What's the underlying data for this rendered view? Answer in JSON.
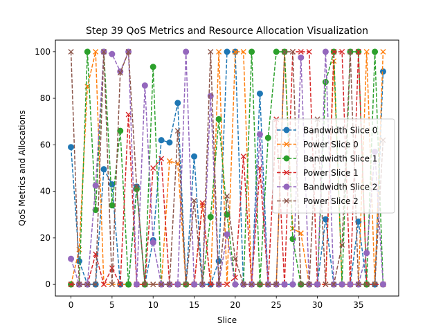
{
  "chart_data": {
    "type": "line",
    "title": "Step 39 QoS Metrics and Resource Allocation Visualization",
    "xlabel": "Slice",
    "ylabel": "QoS Metrics and Allocations",
    "xlim": [
      -1.9,
      39.9
    ],
    "ylim": [
      -5,
      105
    ],
    "xticks": [
      0,
      5,
      10,
      15,
      20,
      25,
      30,
      35
    ],
    "yticks": [
      0,
      20,
      40,
      60,
      80,
      100
    ],
    "grid": false,
    "legend_position": "center-right",
    "x": [
      0,
      1,
      2,
      3,
      4,
      5,
      6,
      7,
      8,
      9,
      10,
      11,
      12,
      13,
      14,
      15,
      16,
      17,
      18,
      19,
      20,
      21,
      22,
      23,
      24,
      25,
      26,
      27,
      28,
      29,
      30,
      31,
      32,
      33,
      34,
      35,
      36,
      37,
      38
    ],
    "series": [
      {
        "name": "Bandwidth Slice 0",
        "color": "#1f77b4",
        "marker": "circle",
        "values": [
          59,
          10,
          0,
          0,
          49.5,
          43,
          0,
          0,
          42,
          0,
          19,
          62,
          61,
          78,
          0,
          55,
          0,
          0,
          10,
          100,
          100,
          0,
          0,
          82,
          0,
          0,
          0,
          0,
          0,
          0,
          0,
          28,
          0,
          0,
          0,
          27,
          0,
          0,
          91.5
        ]
      },
      {
        "name": "Power Slice 0",
        "color": "#ff7f0e",
        "marker": "x",
        "values": [
          0,
          15,
          85,
          100,
          0,
          0,
          0,
          0,
          0,
          0,
          0,
          0,
          53,
          52,
          0,
          0,
          34,
          0,
          100,
          0,
          100,
          100,
          0,
          0,
          0,
          0,
          100,
          24,
          22,
          0,
          0,
          0,
          96,
          0,
          0,
          0,
          100,
          0,
          100
        ]
      },
      {
        "name": "Bandwidth Slice 1",
        "color": "#2ca02c",
        "marker": "circle",
        "values": [
          0,
          0,
          100,
          32,
          100,
          34,
          66,
          0,
          41,
          0,
          93.5,
          0,
          0,
          0,
          0,
          0,
          0,
          29,
          71,
          30,
          0,
          0,
          100,
          0,
          63,
          100,
          100,
          19.5,
          0,
          0,
          0,
          87,
          100,
          0,
          100,
          100,
          0,
          100,
          0
        ]
      },
      {
        "name": "Power Slice 1",
        "color": "#d62728",
        "marker": "x",
        "values": [
          0,
          0,
          0,
          13,
          0,
          7,
          0,
          73,
          0,
          0,
          50,
          54,
          0,
          0,
          0,
          0,
          35,
          0,
          0,
          0,
          3,
          55,
          0,
          50,
          0,
          71,
          0,
          100,
          100,
          100,
          0,
          0,
          100,
          100,
          0,
          100,
          0,
          0,
          0
        ]
      },
      {
        "name": "Bandwidth Slice 2",
        "color": "#9467bd",
        "marker": "circle",
        "values": [
          11,
          0,
          0,
          42.5,
          100,
          99,
          91.5,
          100,
          0,
          85.5,
          18,
          0,
          0,
          0,
          100,
          0,
          0,
          81,
          0,
          21.5,
          0,
          0,
          0,
          64.5,
          0,
          0,
          0,
          0,
          97.5,
          0,
          0,
          100,
          0,
          0,
          0,
          0,
          13.5,
          57,
          0
        ]
      },
      {
        "name": "Power Slice 2",
        "color": "#8c564b",
        "marker": "x",
        "values": [
          100,
          0,
          0,
          0,
          100,
          0,
          91,
          100,
          42,
          0,
          0,
          0,
          0,
          66,
          0,
          36,
          0,
          100,
          0,
          38,
          11,
          0,
          0,
          0,
          0,
          0,
          100,
          100,
          0,
          0,
          71,
          0,
          0,
          17,
          100,
          0,
          0,
          0,
          62
        ]
      }
    ]
  }
}
